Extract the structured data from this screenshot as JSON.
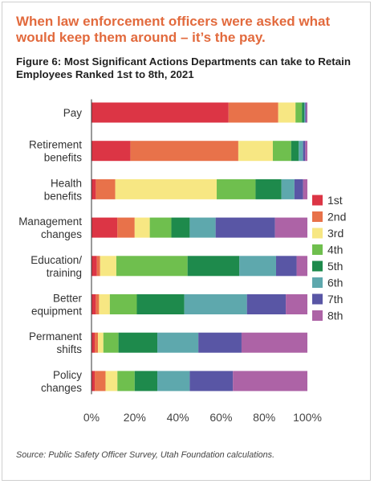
{
  "headline": "When law enforcement officers were asked what would keep them around – it’s the pay.",
  "figure_title": "Figure 6: Most Significant Actions Departments can take to Retain Employees Ranked 1st to 8th, 2021",
  "source": "Source: Public Safety Officer Survey, Utah Foundation calculations.",
  "chart_data": {
    "type": "bar",
    "orientation": "horizontal",
    "stacked": "percent",
    "title": "Figure 6: Most Significant Actions Departments can take to Retain Employees Ranked 1st to 8th, 2021",
    "xlim": [
      0,
      100
    ],
    "xticks": [
      "0%",
      "20%",
      "40%",
      "60%",
      "80%",
      "100%"
    ],
    "grid": false,
    "legend_position": "right",
    "categories": [
      "Pay",
      "Retirement benefits",
      "Health benefits",
      "Management changes",
      "Education/ training",
      "Better equipment",
      "Permanent shifts",
      "Policy changes"
    ],
    "category_lines": [
      [
        "Pay"
      ],
      [
        "Retirement",
        "benefits"
      ],
      [
        "Health",
        "benefits"
      ],
      [
        "Management",
        "changes"
      ],
      [
        "Education/",
        "training"
      ],
      [
        "Better",
        "equipment"
      ],
      [
        "Permanent",
        "shifts"
      ],
      [
        "Policy",
        "changes"
      ]
    ],
    "series": [
      {
        "name": "1st",
        "color": "#dc3545",
        "values": [
          63.5,
          18,
          2,
          12,
          2.5,
          2,
          1.5,
          1.5
        ]
      },
      {
        "name": "2nd",
        "color": "#e8724a",
        "values": [
          23,
          50,
          9,
          8,
          1.5,
          1.5,
          1.5,
          5
        ]
      },
      {
        "name": "3rd",
        "color": "#f7e783",
        "values": [
          8,
          16,
          47,
          7,
          7.5,
          5,
          2.5,
          5.5
        ]
      },
      {
        "name": "4th",
        "color": "#6fbf4e",
        "values": [
          3,
          8.5,
          18,
          10,
          33,
          12.5,
          7,
          8
        ]
      },
      {
        "name": "5th",
        "color": "#1e8a4c",
        "values": [
          1,
          3.5,
          12,
          8.5,
          24,
          22,
          18,
          10.5
        ]
      },
      {
        "name": "6th",
        "color": "#5ea8ad",
        "values": [
          0.5,
          2,
          6,
          12,
          17,
          29,
          19,
          15
        ]
      },
      {
        "name": "7th",
        "color": "#5956a5",
        "values": [
          0.5,
          1,
          4,
          27.5,
          9.5,
          18,
          20,
          20
        ]
      },
      {
        "name": "8th",
        "color": "#ad63a6",
        "values": [
          0.5,
          1,
          2,
          15,
          5,
          10,
          30.5,
          34.5
        ]
      }
    ]
  }
}
